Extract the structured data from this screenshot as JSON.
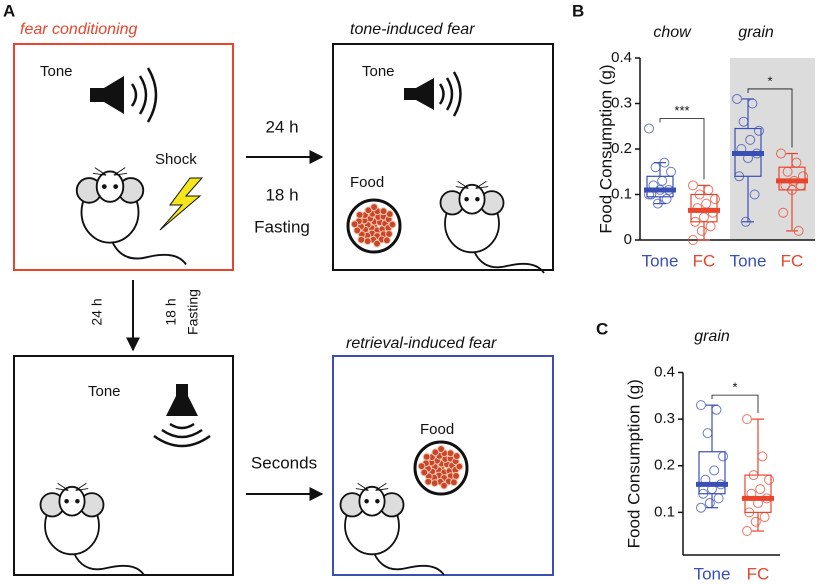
{
  "panel_labels": [
    "A",
    "B",
    "C"
  ],
  "diagram": {
    "fear_conditioning": "fear conditioning",
    "tone_induced_fear": "tone-induced fear",
    "retrieval_induced_fear": "retrieval-induced fear",
    "box1_tone": "Tone",
    "box1_shock": "Shock",
    "arrow_right_top": "24 h",
    "arrow_right_bottom_1": "18 h",
    "arrow_right_bottom_2": "Fasting",
    "box2_tone": "Tone",
    "box2_food": "Food",
    "arrow_down_left": "24 h",
    "arrow_down_right_1": "18 h",
    "arrow_down_right_2": "Fasting",
    "box3_tone": "Tone",
    "arrow_seconds": "Seconds",
    "box4_food": "Food"
  },
  "chart_data": [
    {
      "type": "box",
      "ylabel": "Food Consumption (g)",
      "ylim": [
        0,
        0.4
      ],
      "yticks": [
        0,
        0.1,
        0.2,
        0.3,
        0.4
      ],
      "shade_color": "#dcdcdc",
      "groups": [
        {
          "name": "chow",
          "shaded": false,
          "significance": "***",
          "boxes": [
            {
              "label": "Tone",
              "color": "#3a4fb5",
              "min": 0.08,
              "q1": 0.095,
              "median": 0.11,
              "q3": 0.14,
              "max": 0.17,
              "points": [
                0.245,
                0.17,
                0.16,
                0.15,
                0.13,
                0.12,
                0.11,
                0.11,
                0.1,
                0.09,
                0.08,
                0.1
              ]
            },
            {
              "label": "FC",
              "color": "#e8452c",
              "min": 0.0,
              "q1": 0.04,
              "median": 0.065,
              "q3": 0.1,
              "max": 0.12,
              "points": [
                0.12,
                0.11,
                0.1,
                0.09,
                0.08,
                0.07,
                0.06,
                0.05,
                0.04,
                0.03,
                0.02,
                0.0
              ]
            }
          ]
        },
        {
          "name": "grain",
          "shaded": true,
          "significance": "*",
          "boxes": [
            {
              "label": "Tone",
              "color": "#3a4fb5",
              "min": 0.04,
              "q1": 0.14,
              "median": 0.19,
              "q3": 0.245,
              "max": 0.31,
              "points": [
                0.31,
                0.3,
                0.26,
                0.24,
                0.22,
                0.2,
                0.19,
                0.18,
                0.14,
                0.1,
                0.04
              ]
            },
            {
              "label": "FC",
              "color": "#e8452c",
              "min": 0.02,
              "q1": 0.11,
              "median": 0.13,
              "q3": 0.16,
              "max": 0.19,
              "points": [
                0.19,
                0.17,
                0.15,
                0.14,
                0.13,
                0.12,
                0.12,
                0.11,
                0.06,
                0.02
              ]
            }
          ]
        }
      ]
    },
    {
      "type": "box",
      "ylabel": "Food Consumption (g)",
      "ylim": [
        0,
        0.4
      ],
      "yticks": [
        0.1,
        0.2,
        0.3,
        0.4
      ],
      "groups": [
        {
          "name": "grain",
          "shaded": false,
          "significance": "*",
          "boxes": [
            {
              "label": "Tone",
              "color": "#3a4fb5",
              "min": 0.11,
              "q1": 0.14,
              "median": 0.16,
              "q3": 0.23,
              "max": 0.33,
              "points": [
                0.33,
                0.32,
                0.27,
                0.22,
                0.19,
                0.17,
                0.16,
                0.15,
                0.14,
                0.13,
                0.12,
                0.11
              ]
            },
            {
              "label": "FC",
              "color": "#e8452c",
              "min": 0.06,
              "q1": 0.1,
              "median": 0.13,
              "q3": 0.18,
              "max": 0.3,
              "points": [
                0.3,
                0.22,
                0.18,
                0.17,
                0.15,
                0.14,
                0.13,
                0.12,
                0.1,
                0.09,
                0.08,
                0.06
              ]
            }
          ]
        }
      ]
    }
  ]
}
